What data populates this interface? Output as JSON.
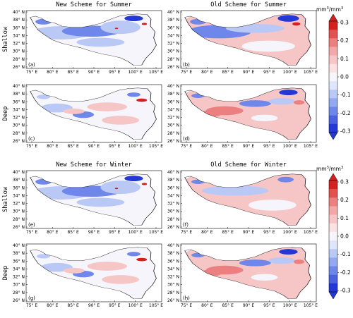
{
  "colors": {
    "strong_blue": "#2438d6",
    "mid_blue": "#6f86ea",
    "light_blue": "#bac8f6",
    "near_white": "#f5f5fb",
    "light_red": "#f6c6c6",
    "mid_red": "#ec7f7f",
    "strong_red": "#d52020"
  },
  "figure": {
    "columns": [
      {
        "id": "new",
        "titles": [
          "New Scheme for Summer",
          "New Scheme for Winter"
        ]
      },
      {
        "id": "old",
        "titles": [
          "Old Scheme for Summer",
          "Old Scheme for Winter"
        ]
      }
    ],
    "row_labels": [
      "Shallow",
      "Deep",
      "Shallow",
      "Deep"
    ],
    "x_ticks": [
      "75° E",
      "80° E",
      "85° E",
      "90° E",
      "95° E",
      "100° E",
      "105° E"
    ],
    "y_ticks": [
      "40° N",
      "38° N",
      "36° N",
      "34° N",
      "32° N",
      "30° N",
      "28° N",
      "26° N"
    ],
    "panels": [
      {
        "label": "(a)",
        "row": 0,
        "col": 0,
        "pattern": "blue"
      },
      {
        "label": "(b)",
        "row": 0,
        "col": 1,
        "pattern": "blue_red"
      },
      {
        "label": "(c)",
        "row": 1,
        "col": 0,
        "pattern": "mixed"
      },
      {
        "label": "(d)",
        "row": 1,
        "col": 1,
        "pattern": "red"
      },
      {
        "label": "(e)",
        "row": 2,
        "col": 0,
        "pattern": "blue"
      },
      {
        "label": "(f)",
        "row": 2,
        "col": 1,
        "pattern": "light_red"
      },
      {
        "label": "(g)",
        "row": 3,
        "col": 0,
        "pattern": "mixed"
      },
      {
        "label": "(h)",
        "row": 3,
        "col": 1,
        "pattern": "red"
      }
    ],
    "colorbars": [
      {
        "unit_base": "mm",
        "unit_sup": "3",
        "unit_sep": "/mm",
        "unit_sup2": "3",
        "ticks": [
          "0.3",
          "0.2",
          "0.1",
          "0.0",
          "-0.1",
          "-0.2",
          "-0.3"
        ]
      },
      {
        "unit_base": "mm",
        "unit_sup": "3",
        "unit_sep": "/mm",
        "unit_sup2": "3",
        "ticks": [
          "0.3",
          "0.2",
          "0.1",
          "0.0",
          "-0.1",
          "-0.2",
          "-0.3"
        ]
      }
    ]
  }
}
